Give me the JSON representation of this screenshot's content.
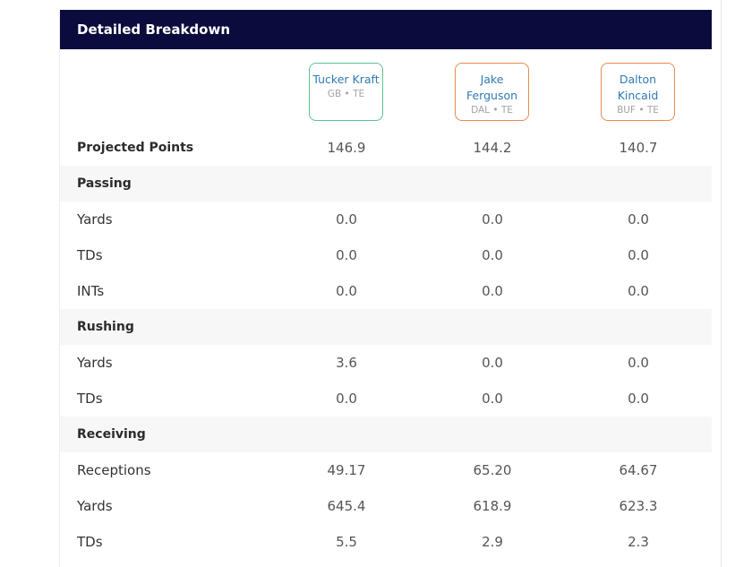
{
  "header": {
    "title": "Detailed Breakdown"
  },
  "players": [
    {
      "name": "Tucker Kraft",
      "meta": "GB • TE",
      "accent": "#5cc48d"
    },
    {
      "name": "Jake Ferguson",
      "meta": "DAL • TE",
      "accent": "#e98b4e"
    },
    {
      "name": "Dalton Kincaid",
      "meta": "BUF • TE",
      "accent": "#e98b4e"
    }
  ],
  "rows": {
    "projected": {
      "label": "Projected Points",
      "values": [
        "146.9",
        "144.2",
        "140.7"
      ]
    },
    "passing": {
      "label": "Passing"
    },
    "pass_yards": {
      "label": "Yards",
      "values": [
        "0.0",
        "0.0",
        "0.0"
      ]
    },
    "pass_tds": {
      "label": "TDs",
      "values": [
        "0.0",
        "0.0",
        "0.0"
      ]
    },
    "pass_ints": {
      "label": "INTs",
      "values": [
        "0.0",
        "0.0",
        "0.0"
      ]
    },
    "rushing": {
      "label": "Rushing"
    },
    "rush_yards": {
      "label": "Yards",
      "values": [
        "3.6",
        "0.0",
        "0.0"
      ]
    },
    "rush_tds": {
      "label": "TDs",
      "values": [
        "0.0",
        "0.0",
        "0.0"
      ]
    },
    "receiving": {
      "label": "Receiving"
    },
    "receptions": {
      "label": "Receptions",
      "values": [
        "49.17",
        "65.20",
        "64.67"
      ]
    },
    "rec_yards": {
      "label": "Yards",
      "values": [
        "645.4",
        "618.9",
        "623.3"
      ]
    },
    "rec_tds": {
      "label": "TDs",
      "values": [
        "5.5",
        "2.9",
        "2.3"
      ]
    }
  },
  "colors": {
    "header_bg": "#0b0c3d",
    "player_name": "#2f7ab5",
    "alt_row": "#f7f7f7"
  }
}
